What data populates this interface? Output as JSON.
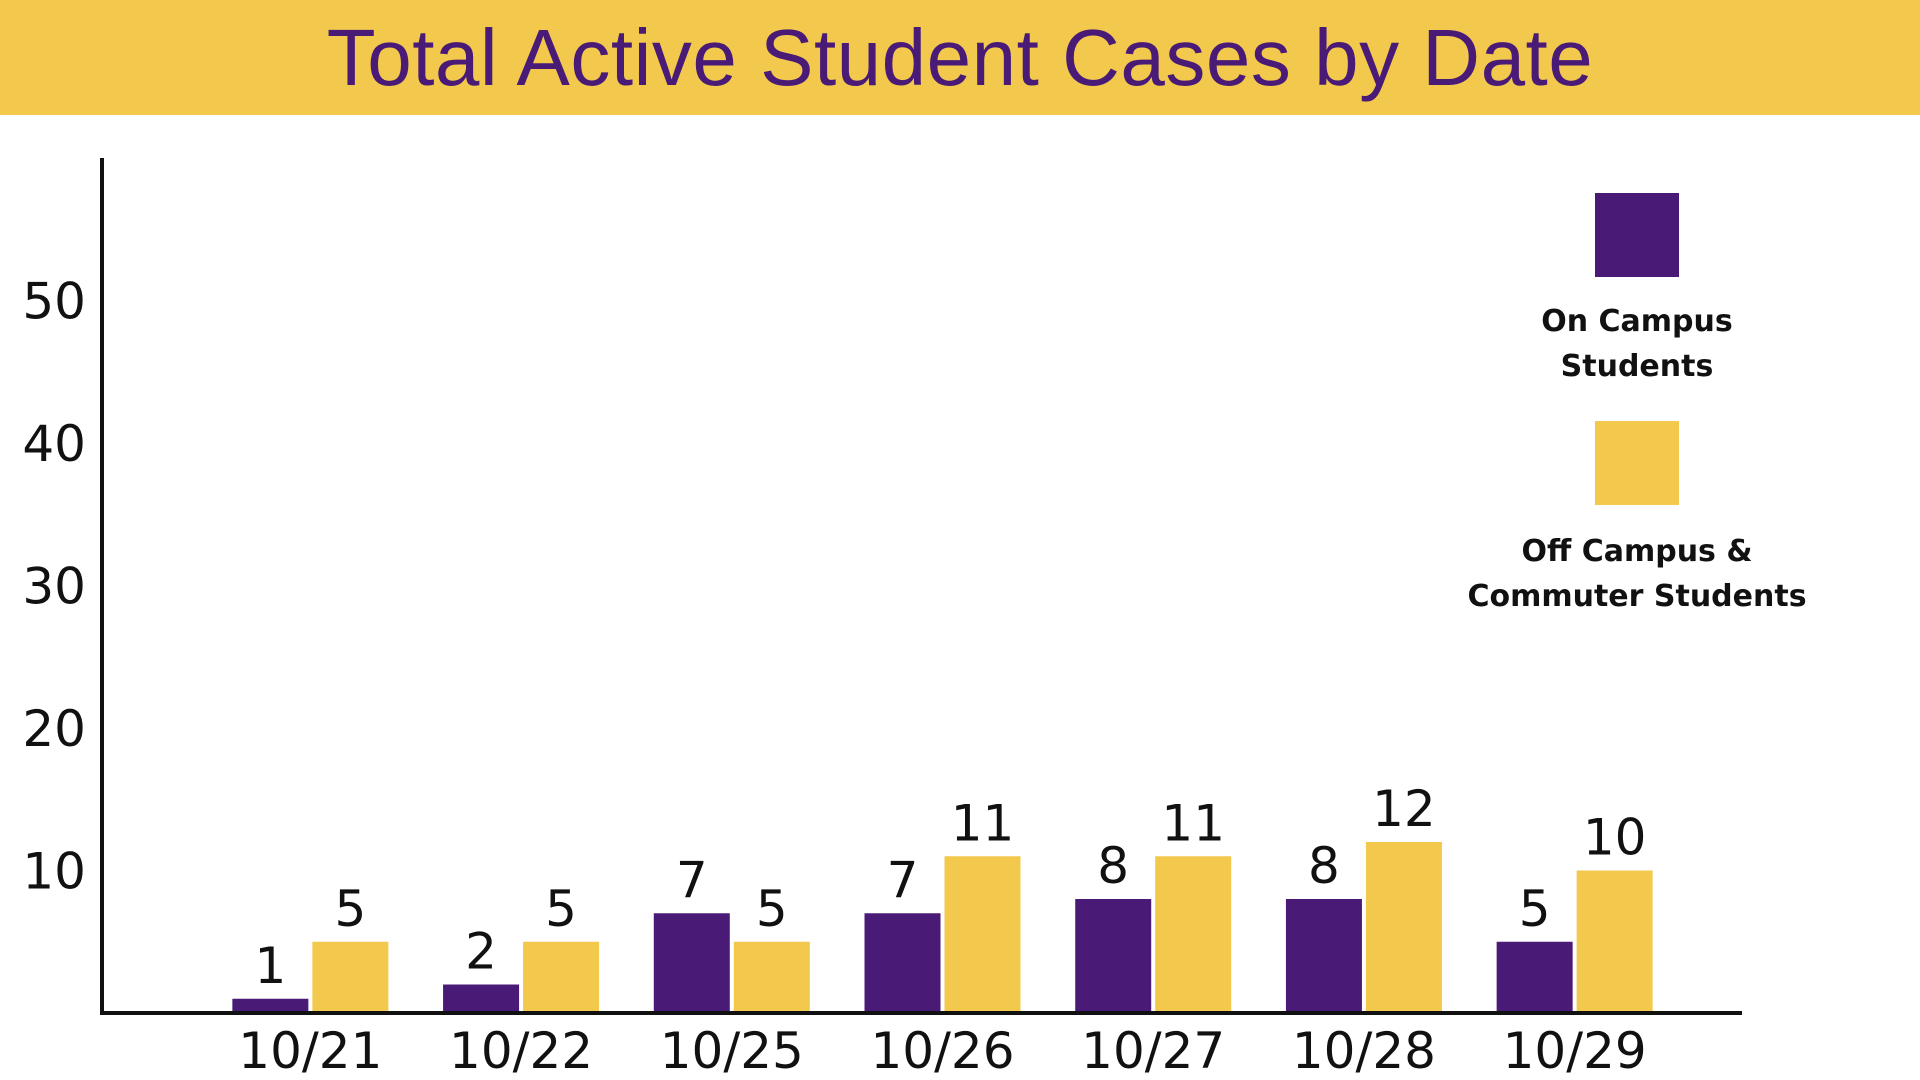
{
  "chart_data": {
    "type": "bar",
    "title": "Total Active Student Cases by Date",
    "xlabel": "",
    "ylabel": "",
    "categories": [
      "10/21",
      "10/22",
      "10/25",
      "10/26",
      "10/27",
      "10/28",
      "10/29"
    ],
    "series": [
      {
        "name": "On Campus Students",
        "color": "#4a1a77",
        "values": [
          1,
          2,
          7,
          7,
          8,
          8,
          5
        ]
      },
      {
        "name": "Off Campus & Commuter Students",
        "color": "#f2c94c",
        "values": [
          5,
          5,
          5,
          11,
          11,
          12,
          10
        ]
      }
    ],
    "yticks": [
      10,
      20,
      30,
      40,
      50
    ],
    "ylim": [
      0,
      60
    ],
    "grid": false,
    "legend": {
      "placement": "right",
      "items": [
        {
          "lines": [
            "On Campus",
            "Students"
          ]
        },
        {
          "lines": [
            "Off Campus &",
            "Commuter Students"
          ]
        }
      ]
    }
  },
  "colors": {
    "banner": "#f2c94c",
    "title_text": "#4a1a77",
    "on_campus": "#4a1a77",
    "off_campus": "#f2c94c",
    "axis": "#111111"
  }
}
